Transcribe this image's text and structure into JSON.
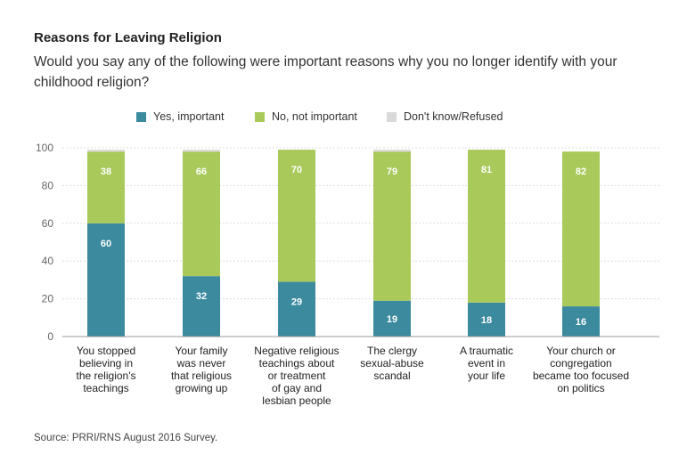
{
  "header": {
    "title": "Reasons for Leaving Religion",
    "subtitle": "Would you say any of the following were important reasons why you no longer identify with your childhood religion?"
  },
  "source": "Source: PRRI/RNS August 2016 Survey.",
  "colors": {
    "yes": "#3b8a9e",
    "no": "#a9c95a",
    "dk": "#d9d9d9",
    "grid": "#dddddd",
    "axis": "#999999"
  },
  "chart_data": {
    "type": "bar",
    "stacked": true,
    "title": "Reasons for Leaving Religion",
    "xlabel": "",
    "ylabel": "",
    "ylim": [
      0,
      100
    ],
    "yticks": [
      0,
      20,
      40,
      60,
      80,
      100
    ],
    "grid": true,
    "legend_position": "top",
    "categories": [
      [
        "You stopped",
        "believing in",
        "the religion's",
        "teachings"
      ],
      [
        "Your family",
        "was never",
        "that religious",
        "growing up"
      ],
      [
        "Negative religious",
        "teachings about",
        "or treatment",
        "of gay and",
        "lesbian people"
      ],
      [
        "The clergy",
        "sexual-abuse",
        "scandal"
      ],
      [
        "A traumatic",
        "event in",
        "your life"
      ],
      [
        "Your church or",
        "congregation",
        "became too focused",
        "on politics"
      ]
    ],
    "series": [
      {
        "name": "Yes, important",
        "color_key": "yes",
        "values": [
          60,
          32,
          29,
          19,
          18,
          16
        ],
        "labels": [
          "60",
          "32",
          "29",
          "19",
          "18",
          "16"
        ]
      },
      {
        "name": "No, not important",
        "color_key": "no",
        "values": [
          38,
          66,
          70,
          79,
          81,
          82
        ],
        "labels": [
          "38",
          "66",
          "70",
          "79",
          "81",
          "82"
        ]
      },
      {
        "name": "Don't know/Refused",
        "color_key": "dk",
        "values": [
          1,
          1,
          0,
          1,
          0,
          0
        ]
      }
    ]
  }
}
